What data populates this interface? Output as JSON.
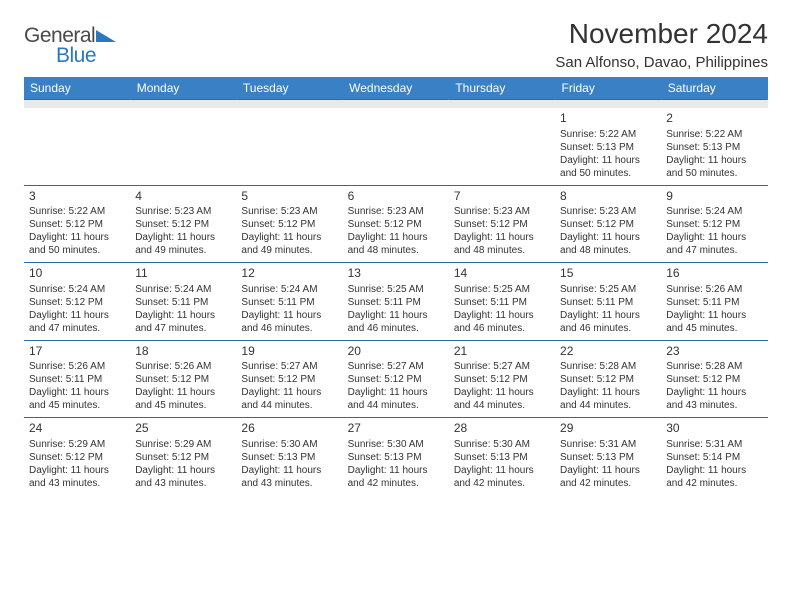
{
  "logo": {
    "part1": "General",
    "part2": "Blue"
  },
  "title": "November 2024",
  "location": "San Alfonso, Davao, Philippines",
  "colors": {
    "header_bg": "#3a80c4",
    "header_text": "#ffffff",
    "border": "#2b6aa8",
    "spacer_bg": "#e9e9e9",
    "text": "#333333",
    "logo_blue": "#2b78c2",
    "logo_gray": "#4a4a4a",
    "page_bg": "#ffffff"
  },
  "weekdays": [
    "Sunday",
    "Monday",
    "Tuesday",
    "Wednesday",
    "Thursday",
    "Friday",
    "Saturday"
  ],
  "weeks": [
    [
      null,
      null,
      null,
      null,
      null,
      {
        "d": "1",
        "sr": "Sunrise: 5:22 AM",
        "ss": "Sunset: 5:13 PM",
        "dl": "Daylight: 11 hours and 50 minutes."
      },
      {
        "d": "2",
        "sr": "Sunrise: 5:22 AM",
        "ss": "Sunset: 5:13 PM",
        "dl": "Daylight: 11 hours and 50 minutes."
      }
    ],
    [
      {
        "d": "3",
        "sr": "Sunrise: 5:22 AM",
        "ss": "Sunset: 5:12 PM",
        "dl": "Daylight: 11 hours and 50 minutes."
      },
      {
        "d": "4",
        "sr": "Sunrise: 5:23 AM",
        "ss": "Sunset: 5:12 PM",
        "dl": "Daylight: 11 hours and 49 minutes."
      },
      {
        "d": "5",
        "sr": "Sunrise: 5:23 AM",
        "ss": "Sunset: 5:12 PM",
        "dl": "Daylight: 11 hours and 49 minutes."
      },
      {
        "d": "6",
        "sr": "Sunrise: 5:23 AM",
        "ss": "Sunset: 5:12 PM",
        "dl": "Daylight: 11 hours and 48 minutes."
      },
      {
        "d": "7",
        "sr": "Sunrise: 5:23 AM",
        "ss": "Sunset: 5:12 PM",
        "dl": "Daylight: 11 hours and 48 minutes."
      },
      {
        "d": "8",
        "sr": "Sunrise: 5:23 AM",
        "ss": "Sunset: 5:12 PM",
        "dl": "Daylight: 11 hours and 48 minutes."
      },
      {
        "d": "9",
        "sr": "Sunrise: 5:24 AM",
        "ss": "Sunset: 5:12 PM",
        "dl": "Daylight: 11 hours and 47 minutes."
      }
    ],
    [
      {
        "d": "10",
        "sr": "Sunrise: 5:24 AM",
        "ss": "Sunset: 5:12 PM",
        "dl": "Daylight: 11 hours and 47 minutes."
      },
      {
        "d": "11",
        "sr": "Sunrise: 5:24 AM",
        "ss": "Sunset: 5:11 PM",
        "dl": "Daylight: 11 hours and 47 minutes."
      },
      {
        "d": "12",
        "sr": "Sunrise: 5:24 AM",
        "ss": "Sunset: 5:11 PM",
        "dl": "Daylight: 11 hours and 46 minutes."
      },
      {
        "d": "13",
        "sr": "Sunrise: 5:25 AM",
        "ss": "Sunset: 5:11 PM",
        "dl": "Daylight: 11 hours and 46 minutes."
      },
      {
        "d": "14",
        "sr": "Sunrise: 5:25 AM",
        "ss": "Sunset: 5:11 PM",
        "dl": "Daylight: 11 hours and 46 minutes."
      },
      {
        "d": "15",
        "sr": "Sunrise: 5:25 AM",
        "ss": "Sunset: 5:11 PM",
        "dl": "Daylight: 11 hours and 46 minutes."
      },
      {
        "d": "16",
        "sr": "Sunrise: 5:26 AM",
        "ss": "Sunset: 5:11 PM",
        "dl": "Daylight: 11 hours and 45 minutes."
      }
    ],
    [
      {
        "d": "17",
        "sr": "Sunrise: 5:26 AM",
        "ss": "Sunset: 5:11 PM",
        "dl": "Daylight: 11 hours and 45 minutes."
      },
      {
        "d": "18",
        "sr": "Sunrise: 5:26 AM",
        "ss": "Sunset: 5:12 PM",
        "dl": "Daylight: 11 hours and 45 minutes."
      },
      {
        "d": "19",
        "sr": "Sunrise: 5:27 AM",
        "ss": "Sunset: 5:12 PM",
        "dl": "Daylight: 11 hours and 44 minutes."
      },
      {
        "d": "20",
        "sr": "Sunrise: 5:27 AM",
        "ss": "Sunset: 5:12 PM",
        "dl": "Daylight: 11 hours and 44 minutes."
      },
      {
        "d": "21",
        "sr": "Sunrise: 5:27 AM",
        "ss": "Sunset: 5:12 PM",
        "dl": "Daylight: 11 hours and 44 minutes."
      },
      {
        "d": "22",
        "sr": "Sunrise: 5:28 AM",
        "ss": "Sunset: 5:12 PM",
        "dl": "Daylight: 11 hours and 44 minutes."
      },
      {
        "d": "23",
        "sr": "Sunrise: 5:28 AM",
        "ss": "Sunset: 5:12 PM",
        "dl": "Daylight: 11 hours and 43 minutes."
      }
    ],
    [
      {
        "d": "24",
        "sr": "Sunrise: 5:29 AM",
        "ss": "Sunset: 5:12 PM",
        "dl": "Daylight: 11 hours and 43 minutes."
      },
      {
        "d": "25",
        "sr": "Sunrise: 5:29 AM",
        "ss": "Sunset: 5:12 PM",
        "dl": "Daylight: 11 hours and 43 minutes."
      },
      {
        "d": "26",
        "sr": "Sunrise: 5:30 AM",
        "ss": "Sunset: 5:13 PM",
        "dl": "Daylight: 11 hours and 43 minutes."
      },
      {
        "d": "27",
        "sr": "Sunrise: 5:30 AM",
        "ss": "Sunset: 5:13 PM",
        "dl": "Daylight: 11 hours and 42 minutes."
      },
      {
        "d": "28",
        "sr": "Sunrise: 5:30 AM",
        "ss": "Sunset: 5:13 PM",
        "dl": "Daylight: 11 hours and 42 minutes."
      },
      {
        "d": "29",
        "sr": "Sunrise: 5:31 AM",
        "ss": "Sunset: 5:13 PM",
        "dl": "Daylight: 11 hours and 42 minutes."
      },
      {
        "d": "30",
        "sr": "Sunrise: 5:31 AM",
        "ss": "Sunset: 5:14 PM",
        "dl": "Daylight: 11 hours and 42 minutes."
      }
    ]
  ]
}
